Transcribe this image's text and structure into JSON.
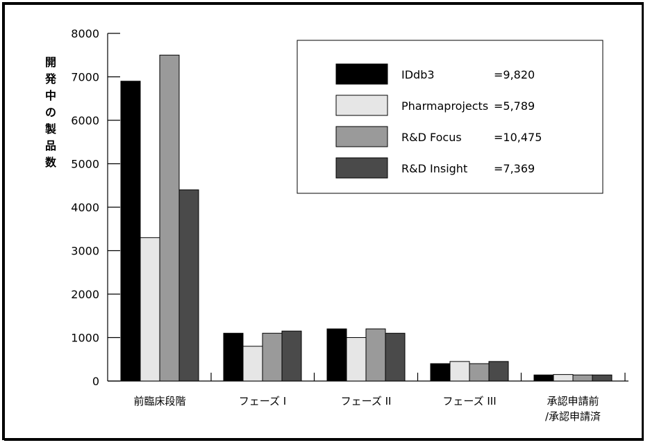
{
  "chart_data": {
    "type": "bar",
    "ylabel": "開発中の製品数",
    "ylim": [
      0,
      8000
    ],
    "yticks": [
      0,
      1000,
      2000,
      3000,
      4000,
      5000,
      6000,
      7000,
      8000
    ],
    "categories": [
      "前臨床段階",
      "フェーズ I",
      "フェーズ II",
      "フェーズ III",
      "承認申請前\n/承認申請済"
    ],
    "category_lines": [
      [
        "前臨床段階"
      ],
      [
        "フェーズ I"
      ],
      [
        "フェーズ II"
      ],
      [
        "フェーズ III"
      ],
      [
        "承認申請前",
        "/承認申請済"
      ]
    ],
    "series": [
      {
        "name": "IDdb3",
        "total": "=9,820",
        "color": "#000000",
        "values": [
          6900,
          1100,
          1200,
          400,
          140
        ]
      },
      {
        "name": "Pharmaprojects",
        "total": "=5,789",
        "color": "#e6e6e6",
        "values": [
          3300,
          800,
          1000,
          450,
          150
        ]
      },
      {
        "name": "R&D Focus",
        "total": "=10,475",
        "color": "#9a9a9a",
        "values": [
          7500,
          1100,
          1200,
          400,
          140
        ]
      },
      {
        "name": "R&D Insight",
        "total": "=7,369",
        "color": "#4a4a4a",
        "values": [
          4400,
          1150,
          1100,
          450,
          140
        ]
      }
    ],
    "legend_position": "top-right",
    "grid": false
  }
}
